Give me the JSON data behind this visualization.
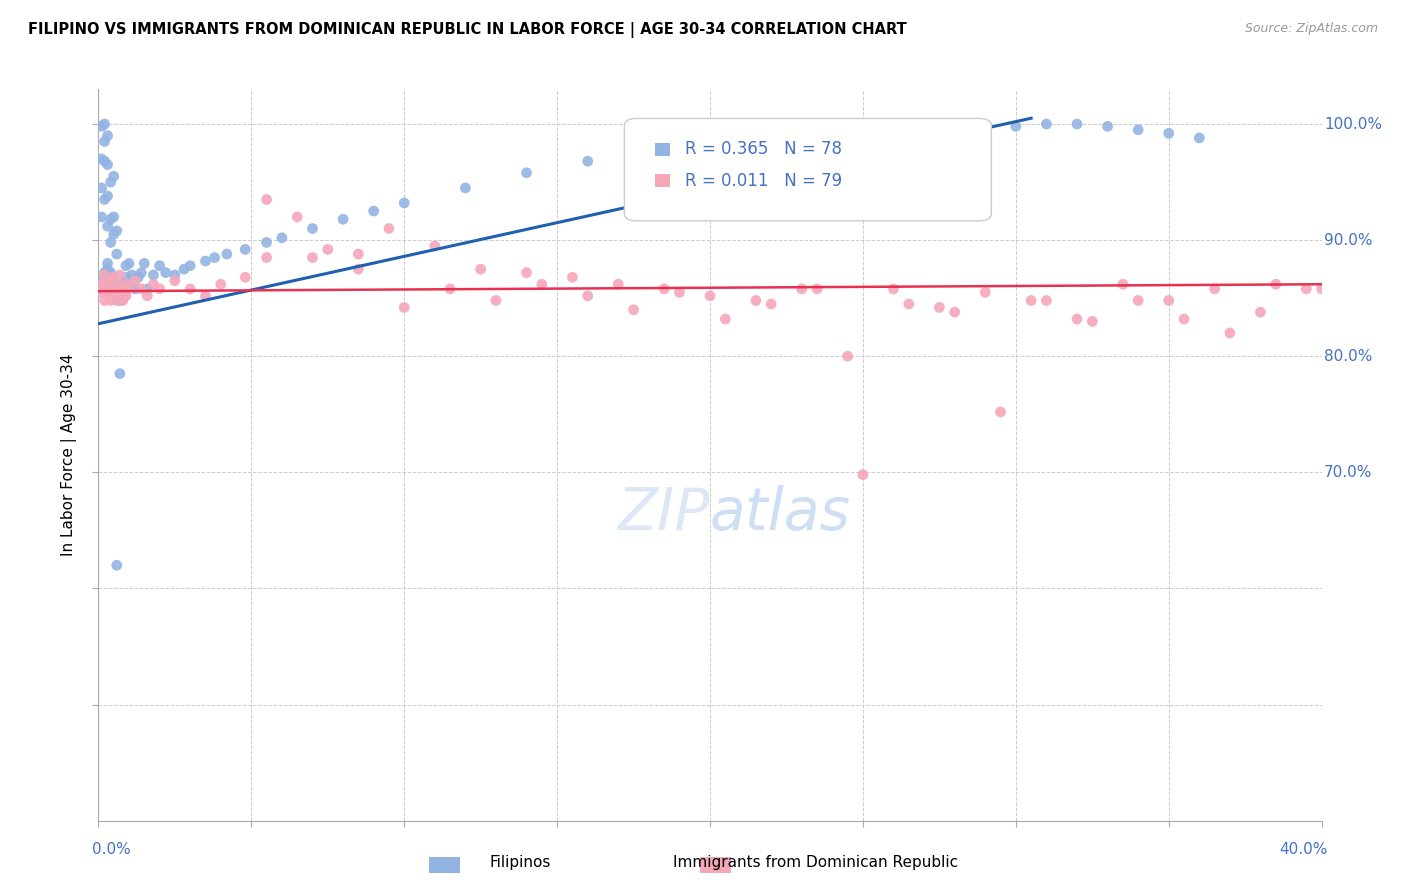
{
  "title": "FILIPINO VS IMMIGRANTS FROM DOMINICAN REPUBLIC IN LABOR FORCE | AGE 30-34 CORRELATION CHART",
  "source": "Source: ZipAtlas.com",
  "ylabel": "In Labor Force | Age 30-34",
  "xmin": 0.0,
  "xmax": 0.4,
  "ymin": 0.4,
  "ymax": 1.03,
  "r_filipino": 0.365,
  "n_filipino": 78,
  "r_dominican": 0.011,
  "n_dominican": 79,
  "filipino_color": "#92b4e3",
  "dominican_color": "#f4a7b9",
  "trend_filipino_color": "#2060b0",
  "trend_dominican_color": "#e83050",
  "axis_label_color": "#4472c4",
  "watermark_color": "#c8d8f0",
  "grid_color": "#cccccc",
  "fil_trend_x0": 0.0,
  "fil_trend_y0": 0.828,
  "fil_trend_x1": 0.305,
  "fil_trend_y1": 1.005,
  "dom_trend_x0": 0.0,
  "dom_trend_y0": 0.856,
  "dom_trend_x1": 0.4,
  "dom_trend_y1": 0.862,
  "filipino_x": [
    0.001,
    0.001,
    0.001,
    0.001,
    0.001,
    0.002,
    0.002,
    0.002,
    0.002,
    0.002,
    0.002,
    0.003,
    0.003,
    0.003,
    0.003,
    0.003,
    0.003,
    0.003,
    0.004,
    0.004,
    0.004,
    0.004,
    0.004,
    0.005,
    0.005,
    0.005,
    0.005,
    0.005,
    0.006,
    0.006,
    0.006,
    0.007,
    0.007,
    0.007,
    0.008,
    0.008,
    0.009,
    0.009,
    0.01,
    0.01,
    0.011,
    0.012,
    0.013,
    0.014,
    0.015,
    0.016,
    0.018,
    0.02,
    0.022,
    0.025,
    0.028,
    0.03,
    0.035,
    0.038,
    0.042,
    0.048,
    0.055,
    0.06,
    0.07,
    0.08,
    0.09,
    0.1,
    0.12,
    0.14,
    0.16,
    0.18,
    0.2,
    0.22,
    0.24,
    0.26,
    0.28,
    0.3,
    0.31,
    0.32,
    0.33,
    0.34,
    0.35,
    0.36
  ],
  "filipino_y": [
    0.86,
    0.855,
    0.862,
    0.858,
    0.852,
    0.865,
    0.87,
    0.858,
    0.852,
    0.862,
    0.848,
    0.868,
    0.862,
    0.858,
    0.872,
    0.855,
    0.862,
    0.848,
    0.87,
    0.865,
    0.875,
    0.858,
    0.85,
    0.872,
    0.865,
    0.86,
    0.855,
    0.848,
    0.87,
    0.862,
    0.855,
    0.868,
    0.858,
    0.852,
    0.865,
    0.872,
    0.87,
    0.862,
    0.872,
    0.865,
    0.868,
    0.86,
    0.872,
    0.868,
    0.875,
    0.87,
    0.872,
    0.878,
    0.875,
    0.88,
    0.875,
    0.878,
    0.882,
    0.885,
    0.888,
    0.892,
    0.898,
    0.902,
    0.91,
    0.918,
    0.925,
    0.932,
    0.945,
    0.958,
    0.968,
    0.975,
    0.98,
    0.985,
    0.99,
    0.992,
    0.995,
    0.998,
    1.0,
    1.002,
    1.0,
    0.998,
    0.995,
    0.99
  ],
  "filipino_y_scatter": [
    0.865,
    0.92,
    0.945,
    0.97,
    0.998,
    0.872,
    0.935,
    0.968,
    0.985,
    1.0,
    0.862,
    0.88,
    0.912,
    0.938,
    0.965,
    0.99,
    0.855,
    0.875,
    0.898,
    0.918,
    0.95,
    0.858,
    0.872,
    0.905,
    0.92,
    0.955,
    0.86,
    0.865,
    0.888,
    0.908,
    0.62,
    0.785,
    0.848,
    0.855,
    0.862,
    0.85,
    0.878,
    0.868,
    0.88,
    0.862,
    0.87,
    0.858,
    0.868,
    0.872,
    0.88,
    0.858,
    0.87,
    0.878,
    0.872,
    0.87,
    0.875,
    0.878,
    0.882,
    0.885,
    0.888,
    0.892,
    0.898,
    0.902,
    0.91,
    0.918,
    0.925,
    0.932,
    0.945,
    0.958,
    0.968,
    0.975,
    0.98,
    0.985,
    0.99,
    0.992,
    0.995,
    0.998,
    1.0,
    1.0,
    0.998,
    0.995,
    0.992,
    0.988
  ],
  "dominican_x": [
    0.001,
    0.001,
    0.002,
    0.002,
    0.002,
    0.003,
    0.003,
    0.004,
    0.004,
    0.005,
    0.005,
    0.006,
    0.006,
    0.007,
    0.007,
    0.008,
    0.008,
    0.009,
    0.009,
    0.01,
    0.012,
    0.014,
    0.016,
    0.018,
    0.02,
    0.025,
    0.03,
    0.035,
    0.04,
    0.048,
    0.055,
    0.065,
    0.075,
    0.085,
    0.095,
    0.11,
    0.125,
    0.14,
    0.155,
    0.17,
    0.185,
    0.2,
    0.215,
    0.23,
    0.245,
    0.26,
    0.275,
    0.29,
    0.305,
    0.32,
    0.335,
    0.35,
    0.365,
    0.38,
    0.395,
    0.055,
    0.07,
    0.085,
    0.1,
    0.115,
    0.13,
    0.145,
    0.16,
    0.175,
    0.19,
    0.205,
    0.22,
    0.235,
    0.25,
    0.265,
    0.28,
    0.295,
    0.31,
    0.325,
    0.34,
    0.355,
    0.37,
    0.385,
    0.4
  ],
  "dominican_y": [
    0.862,
    0.855,
    0.87,
    0.858,
    0.848,
    0.865,
    0.855,
    0.862,
    0.848,
    0.868,
    0.855,
    0.862,
    0.848,
    0.87,
    0.855,
    0.858,
    0.848,
    0.862,
    0.852,
    0.858,
    0.865,
    0.858,
    0.852,
    0.862,
    0.858,
    0.865,
    0.858,
    0.852,
    0.862,
    0.868,
    0.935,
    0.92,
    0.892,
    0.888,
    0.91,
    0.895,
    0.875,
    0.872,
    0.868,
    0.862,
    0.858,
    0.852,
    0.848,
    0.858,
    0.8,
    0.858,
    0.842,
    0.855,
    0.848,
    0.832,
    0.862,
    0.848,
    0.858,
    0.838,
    0.858,
    0.885,
    0.885,
    0.875,
    0.842,
    0.858,
    0.848,
    0.862,
    0.852,
    0.84,
    0.855,
    0.832,
    0.845,
    0.858,
    0.698,
    0.845,
    0.838,
    0.752,
    0.848,
    0.83,
    0.848,
    0.832,
    0.82,
    0.862,
    0.858
  ]
}
